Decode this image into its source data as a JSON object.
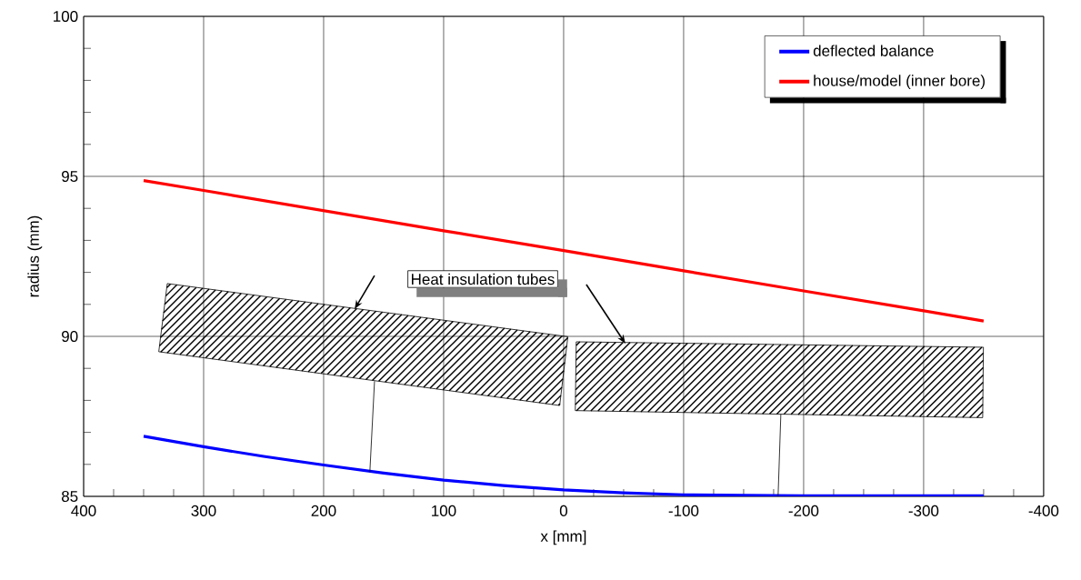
{
  "chart_data": {
    "type": "line",
    "xlabel": "x [mm]",
    "ylabel": "radius (mm)",
    "x": [
      350,
      300,
      250,
      200,
      150,
      100,
      50,
      0,
      -50,
      -100,
      -150,
      -200,
      -250,
      -300,
      -350
    ],
    "series": [
      {
        "name": "deflected balance",
        "color": "#0000ff",
        "values": [
          86.88,
          86.55,
          86.25,
          85.98,
          85.73,
          85.51,
          85.34,
          85.2,
          85.11,
          85.05,
          85.03,
          85.02,
          85.02,
          85.02,
          85.02
        ]
      },
      {
        "name": "house/model (inner bore)",
        "color": "#ff0000",
        "x": [
          350,
          300,
          200,
          100,
          0,
          -100,
          -200,
          -300,
          -350
        ],
        "values": [
          94.87,
          94.56,
          93.93,
          93.3,
          92.68,
          92.05,
          91.42,
          90.8,
          90.48
        ]
      }
    ],
    "xlim": [
      400,
      -400
    ],
    "xticks": [
      400,
      300,
      200,
      100,
      0,
      -100,
      -200,
      -300,
      -400
    ],
    "ylim": [
      85,
      100
    ],
    "yticks": [
      85,
      90,
      95,
      100
    ],
    "grid": true,
    "legend": "top right",
    "marker": "none",
    "line_style": "solid",
    "annotations": [
      "Heat insulation tubes"
    ]
  }
}
